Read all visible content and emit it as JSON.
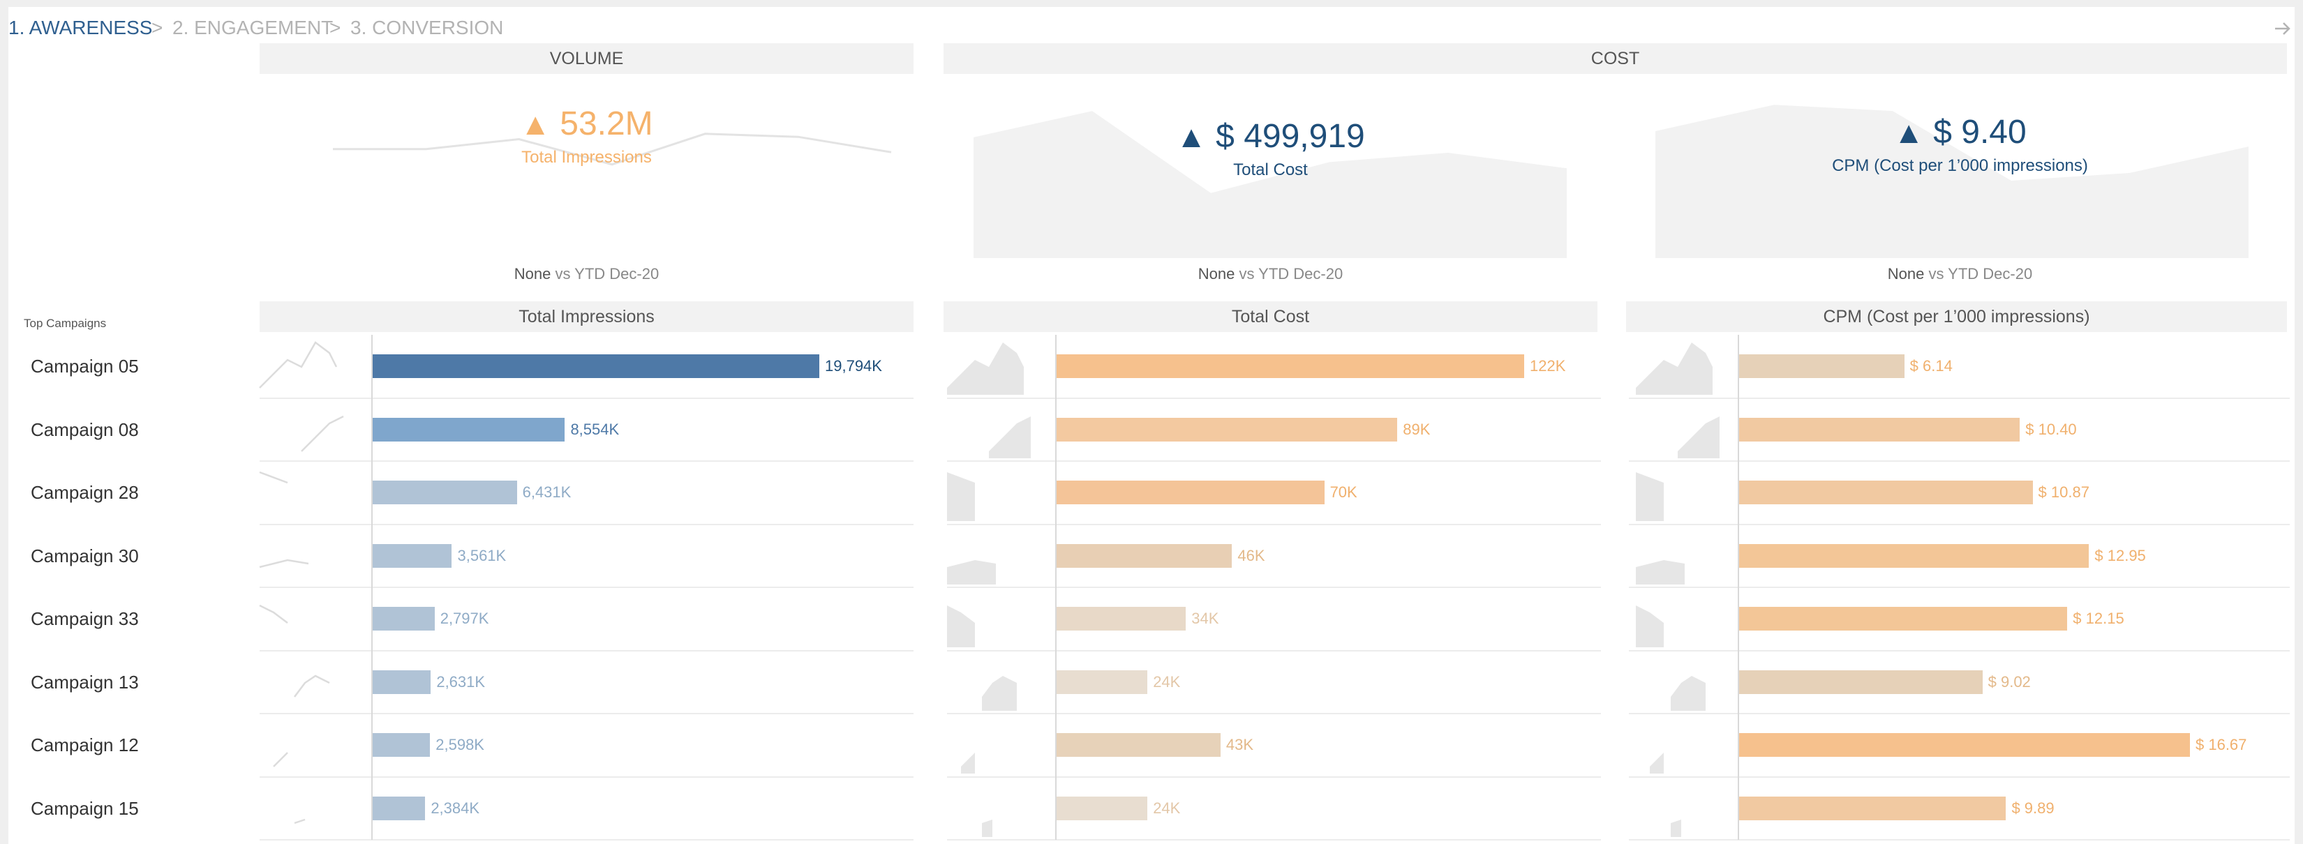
{
  "breadcrumb": {
    "steps": [
      "1. AWARENESS",
      "2. ENGAGEMENT",
      "3. CONVERSION"
    ],
    "separator": ">",
    "next_icon": "arrow-right-icon"
  },
  "sections": {
    "volume": "VOLUME",
    "cost": "COST"
  },
  "kpis": [
    {
      "value": "53.2M",
      "label": "Total Impressions",
      "trend": "up",
      "color": "#f5b26b",
      "compare_none": "None",
      "compare_rest": " vs YTD Dec-20",
      "spark": [
        0.42,
        0.42,
        0.55,
        0.22,
        0.62,
        0.58,
        0.38
      ]
    },
    {
      "value": "$ 499,919",
      "label": "Total Cost",
      "trend": "up",
      "color": "#1f4e79",
      "compare_none": "None",
      "compare_rest": " vs YTD Dec-20",
      "spark": [
        0.78,
        0.95,
        0.42,
        0.62,
        0.68,
        0.58
      ]
    },
    {
      "value": "$ 9.40",
      "label": "CPM (Cost per 1’000 impressions)",
      "trend": "up",
      "color": "#1f4e79",
      "compare_none": "None",
      "compare_rest": " vs YTD Dec-20",
      "spark": [
        0.82,
        0.99,
        0.95,
        0.5,
        0.55,
        0.72
      ]
    }
  ],
  "table": {
    "row_header": "Top Campaigns",
    "columns": [
      "Total Impressions",
      "Total Cost",
      "CPM (Cost per 1’000 impressions)"
    ]
  },
  "chart_data": [
    {
      "type": "bar",
      "title": "Total Impressions",
      "categories": [
        "Campaign 05",
        "Campaign 08",
        "Campaign 28",
        "Campaign 30",
        "Campaign 33",
        "Campaign 13",
        "Campaign 12",
        "Campaign 15"
      ],
      "values": [
        19794,
        8554,
        6431,
        3561,
        2797,
        2631,
        2598,
        2384
      ],
      "labels": [
        "19,794K",
        "8,554K",
        "6,431K",
        "3,561K",
        "2,797K",
        "2,631K",
        "2,598K",
        "2,384K"
      ],
      "unit": "K",
      "colors": [
        "#4e79a7",
        "#7fa6cc",
        "#b0c3d6",
        "#b0c3d6",
        "#b0c3d6",
        "#b0c3d6",
        "#b0c3d6",
        "#b0c3d6"
      ],
      "label_colors": [
        "#1f4e79",
        "#4e79a7",
        "#8fabc6",
        "#8fabc6",
        "#8fabc6",
        "#8fabc6",
        "#8fabc6",
        "#8fabc6"
      ]
    },
    {
      "type": "bar",
      "title": "Total Cost",
      "categories": [
        "Campaign 05",
        "Campaign 08",
        "Campaign 28",
        "Campaign 30",
        "Campaign 33",
        "Campaign 13",
        "Campaign 12",
        "Campaign 15"
      ],
      "values": [
        122,
        89,
        70,
        46,
        34,
        24,
        43,
        24
      ],
      "labels": [
        "122K",
        "89K",
        "70K",
        "46K",
        "34K",
        "24K",
        "43K",
        "24K"
      ],
      "unit": "K",
      "colors": [
        "#f6c18d",
        "#f3c9a0",
        "#f4c498",
        "#e8cfb4",
        "#e8d9c8",
        "#e8ddd0",
        "#e7d2b9",
        "#e8ddd0"
      ],
      "label_colors": [
        "#f0b06d",
        "#f0b06d",
        "#f0b06d",
        "#e3b98a",
        "#e3c7a8",
        "#e3c7a8",
        "#e3b98a",
        "#e3c7a8"
      ]
    },
    {
      "type": "bar",
      "title": "CPM (Cost per 1’000 impressions)",
      "categories": [
        "Campaign 05",
        "Campaign 08",
        "Campaign 28",
        "Campaign 30",
        "Campaign 33",
        "Campaign 13",
        "Campaign 12",
        "Campaign 15"
      ],
      "values": [
        6.14,
        10.4,
        10.87,
        12.95,
        12.15,
        9.02,
        16.67,
        9.89
      ],
      "labels": [
        "$ 6.14",
        "$ 10.40",
        "$ 10.87",
        "$ 12.95",
        "$ 12.15",
        "$ 9.02",
        "$ 16.67",
        "$ 9.89"
      ],
      "unit": "$",
      "colors": [
        "#e6d1b8",
        "#f1c9a1",
        "#f1c9a1",
        "#f3c697",
        "#f3c697",
        "#e6d1b8",
        "#f6c18d",
        "#f1c9a1"
      ],
      "label_colors": [
        "#f0b06d",
        "#f0b06d",
        "#f0b06d",
        "#f0b06d",
        "#f0b06d",
        "#e3b98a",
        "#f0b06d",
        "#f0b06d"
      ]
    }
  ]
}
